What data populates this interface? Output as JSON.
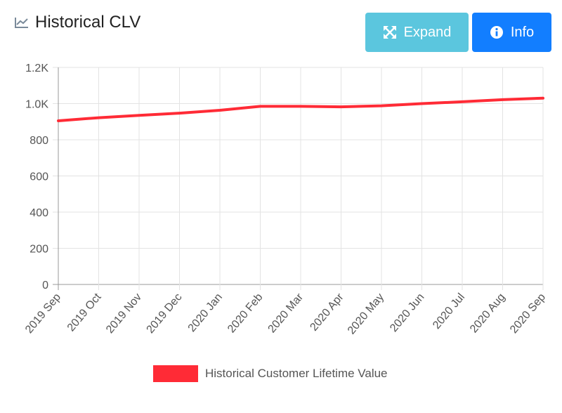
{
  "header": {
    "title": "Historical CLV",
    "icon": "line-chart-icon"
  },
  "buttons": {
    "expand": {
      "label": "Expand",
      "icon": "expand-arrows-icon",
      "color": "#5bc6de"
    },
    "info": {
      "label": "Info",
      "icon": "info-circle-icon",
      "color": "#127eff"
    }
  },
  "chart_data": {
    "type": "line",
    "categories": [
      "2019 Sep",
      "2019 Oct",
      "2019 Nov",
      "2019 Dec",
      "2020 Jan",
      "2020 Feb",
      "2020 Mar",
      "2020 Apr",
      "2020 May",
      "2020 Jun",
      "2020 Jul",
      "2020 Aug",
      "2020 Sep"
    ],
    "series": [
      {
        "name": "Historical Customer Lifetime Value",
        "color": "#ff2b36",
        "values": [
          905,
          922,
          935,
          947,
          963,
          985,
          985,
          982,
          988,
          1000,
          1010,
          1022,
          1030
        ]
      }
    ],
    "ylim": [
      0,
      1200
    ],
    "yticks": [
      0,
      200,
      400,
      600,
      800,
      1000,
      1200
    ],
    "ytick_labels": [
      "0",
      "200",
      "400",
      "600",
      "800",
      "1.0K",
      "1.2K"
    ],
    "grid": true,
    "legend": "bottom"
  }
}
